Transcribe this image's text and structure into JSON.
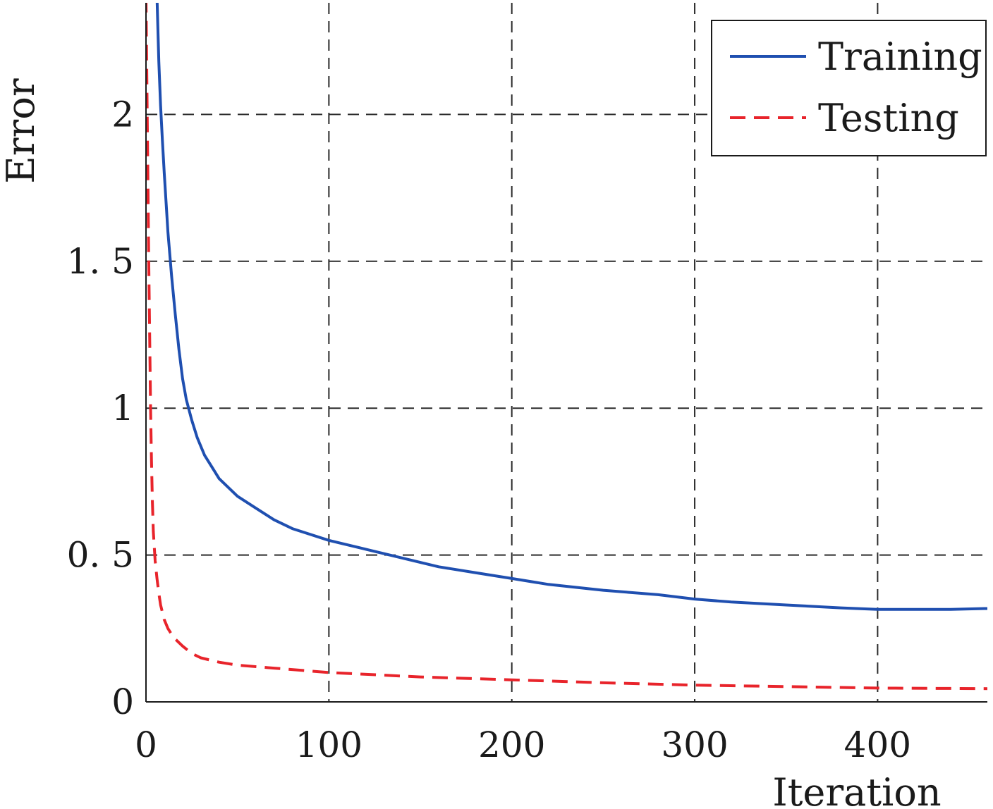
{
  "chart_data": {
    "type": "line",
    "xlabel": "Iteration",
    "ylabel": "Error",
    "xlim": [
      0,
      460
    ],
    "ylim": [
      0,
      2.38
    ],
    "xticks": [
      0,
      100,
      200,
      300,
      400
    ],
    "xtick_labels": [
      "0",
      "100",
      "200",
      "300",
      "400"
    ],
    "yticks": [
      0,
      0.5,
      1,
      1.5,
      2
    ],
    "ytick_labels": [
      "0",
      "0. 5",
      "1",
      "1. 5",
      "2"
    ],
    "grid": true,
    "legend_position": "top-right",
    "series": [
      {
        "name": "Training",
        "color": "#1f4fb0",
        "line_style": "solid",
        "x": [
          6,
          7,
          8,
          9,
          10,
          12,
          14,
          16,
          18,
          20,
          22,
          25,
          28,
          32,
          36,
          40,
          45,
          50,
          60,
          70,
          80,
          100,
          120,
          140,
          160,
          180,
          200,
          220,
          250,
          280,
          300,
          320,
          350,
          380,
          400,
          420,
          440,
          460
        ],
        "y": [
          2.4,
          2.18,
          2.03,
          1.91,
          1.8,
          1.6,
          1.45,
          1.32,
          1.2,
          1.1,
          1.03,
          0.96,
          0.9,
          0.84,
          0.8,
          0.76,
          0.73,
          0.7,
          0.66,
          0.62,
          0.59,
          0.55,
          0.52,
          0.49,
          0.46,
          0.44,
          0.42,
          0.4,
          0.38,
          0.365,
          0.35,
          0.34,
          0.33,
          0.32,
          0.315,
          0.315,
          0.315,
          0.318
        ]
      },
      {
        "name": "Testing",
        "color": "#e8242b",
        "line_style": "dashed",
        "x": [
          0,
          0.5,
          1,
          1.5,
          2,
          2.5,
          3,
          3.5,
          4,
          5,
          6,
          7,
          8,
          10,
          12,
          15,
          20,
          25,
          30,
          40,
          50,
          70,
          100,
          150,
          200,
          250,
          300,
          350,
          400,
          460
        ],
        "y": [
          2.4,
          2.1,
          1.8,
          1.5,
          1.25,
          1.0,
          0.82,
          0.68,
          0.58,
          0.48,
          0.42,
          0.37,
          0.33,
          0.28,
          0.25,
          0.22,
          0.19,
          0.165,
          0.15,
          0.135,
          0.125,
          0.115,
          0.1,
          0.085,
          0.075,
          0.065,
          0.057,
          0.052,
          0.047,
          0.045
        ]
      }
    ]
  }
}
